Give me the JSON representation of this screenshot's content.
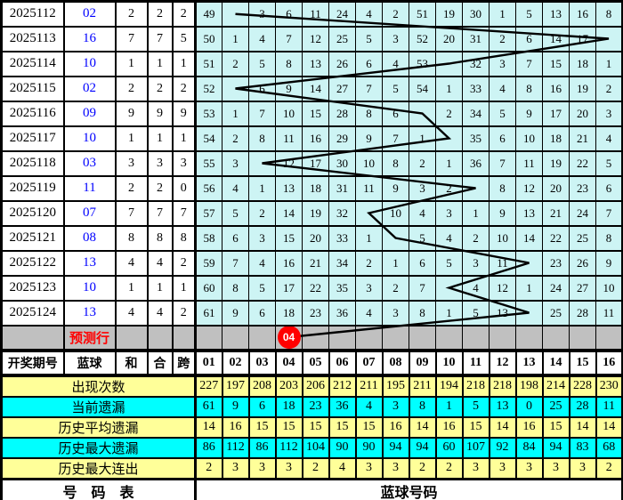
{
  "colors": {
    "grid_cell": "#CDF4F4",
    "stat_yellow": "#FFFF99",
    "stat_cyan": "#00FFFF",
    "prediction_gray": "#C0C0C0",
    "ball_red": "#FF0000",
    "blue_text": "#0000FF",
    "line_black": "#000000"
  },
  "chart_data": {
    "type": "table",
    "header": {
      "period": "开奖期号",
      "blue": "蓝球",
      "sum": "和",
      "combine": "合",
      "span": "跨",
      "ball_columns": [
        "01",
        "02",
        "03",
        "04",
        "05",
        "06",
        "07",
        "08",
        "09",
        "10",
        "11",
        "12",
        "13",
        "14",
        "15",
        "16"
      ]
    },
    "rows": [
      {
        "period": "2025112",
        "blue": "02",
        "sum": "2",
        "combine": "2",
        "span": "2",
        "circle_col": 2,
        "ball": "02",
        "cells": [
          "49",
          "",
          "3",
          "6",
          "11",
          "24",
          "4",
          "2",
          "51",
          "19",
          "30",
          "1",
          "5",
          "13",
          "16",
          "8"
        ]
      },
      {
        "period": "2025113",
        "blue": "16",
        "sum": "7",
        "combine": "7",
        "span": "5",
        "circle_col": 16,
        "ball": "16",
        "cells": [
          "50",
          "1",
          "4",
          "7",
          "12",
          "25",
          "5",
          "3",
          "52",
          "20",
          "31",
          "2",
          "6",
          "14",
          "17",
          ""
        ]
      },
      {
        "period": "2025114",
        "blue": "10",
        "sum": "1",
        "combine": "1",
        "span": "1",
        "circle_col": 10,
        "ball": "10",
        "cells": [
          "51",
          "2",
          "5",
          "8",
          "13",
          "26",
          "6",
          "4",
          "53",
          "",
          "32",
          "3",
          "7",
          "15",
          "18",
          "1"
        ]
      },
      {
        "period": "2025115",
        "blue": "02",
        "sum": "2",
        "combine": "2",
        "span": "2",
        "circle_col": 2,
        "ball": "02",
        "cells": [
          "52",
          "",
          "6",
          "9",
          "14",
          "27",
          "7",
          "5",
          "54",
          "1",
          "33",
          "4",
          "8",
          "16",
          "19",
          "2"
        ]
      },
      {
        "period": "2025116",
        "blue": "09",
        "sum": "9",
        "combine": "9",
        "span": "9",
        "circle_col": 9,
        "ball": "09",
        "cells": [
          "53",
          "1",
          "7",
          "10",
          "15",
          "28",
          "8",
          "6",
          "",
          "2",
          "34",
          "5",
          "9",
          "17",
          "20",
          "3"
        ]
      },
      {
        "period": "2025117",
        "blue": "10",
        "sum": "1",
        "combine": "1",
        "span": "1",
        "circle_col": 10,
        "ball": "10",
        "cells": [
          "54",
          "2",
          "8",
          "11",
          "16",
          "29",
          "9",
          "7",
          "1",
          "",
          "35",
          "6",
          "10",
          "18",
          "21",
          "4"
        ]
      },
      {
        "period": "2025118",
        "blue": "03",
        "sum": "3",
        "combine": "3",
        "span": "3",
        "circle_col": 3,
        "ball": "03",
        "cells": [
          "55",
          "3",
          "",
          "12",
          "17",
          "30",
          "10",
          "8",
          "2",
          "1",
          "36",
          "7",
          "11",
          "19",
          "22",
          "5"
        ]
      },
      {
        "period": "2025119",
        "blue": "11",
        "sum": "2",
        "combine": "2",
        "span": "0",
        "circle_col": 11,
        "ball": "11",
        "cells": [
          "56",
          "4",
          "1",
          "13",
          "18",
          "31",
          "11",
          "9",
          "3",
          "2",
          "",
          "8",
          "12",
          "20",
          "23",
          "6"
        ]
      },
      {
        "period": "2025120",
        "blue": "07",
        "sum": "7",
        "combine": "7",
        "span": "7",
        "circle_col": 7,
        "ball": "07",
        "cells": [
          "57",
          "5",
          "2",
          "14",
          "19",
          "32",
          "",
          "10",
          "4",
          "3",
          "1",
          "9",
          "13",
          "21",
          "24",
          "7"
        ]
      },
      {
        "period": "2025121",
        "blue": "08",
        "sum": "8",
        "combine": "8",
        "span": "8",
        "circle_col": 8,
        "ball": "08",
        "cells": [
          "58",
          "6",
          "3",
          "15",
          "20",
          "33",
          "1",
          "",
          "5",
          "4",
          "2",
          "10",
          "14",
          "22",
          "25",
          "8"
        ]
      },
      {
        "period": "2025122",
        "blue": "13",
        "sum": "4",
        "combine": "4",
        "span": "2",
        "circle_col": 13,
        "ball": "13",
        "cells": [
          "59",
          "7",
          "4",
          "16",
          "21",
          "34",
          "2",
          "1",
          "6",
          "5",
          "3",
          "11",
          "",
          "23",
          "26",
          "9"
        ]
      },
      {
        "period": "2025123",
        "blue": "10",
        "sum": "1",
        "combine": "1",
        "span": "1",
        "circle_col": 10,
        "ball": "10",
        "cells": [
          "60",
          "8",
          "5",
          "17",
          "22",
          "35",
          "3",
          "2",
          "7",
          "",
          "4",
          "12",
          "1",
          "24",
          "27",
          "10"
        ]
      },
      {
        "period": "2025124",
        "blue": "13",
        "sum": "4",
        "combine": "4",
        "span": "2",
        "circle_col": 13,
        "ball": "13",
        "cells": [
          "61",
          "9",
          "6",
          "18",
          "23",
          "36",
          "4",
          "3",
          "8",
          "1",
          "5",
          "13",
          "",
          "25",
          "28",
          "11"
        ]
      }
    ],
    "prediction_row": {
      "label": "预测行",
      "circle_col": 4,
      "ball": "04"
    },
    "stats": [
      {
        "label": "出现次数",
        "bg": "yellow",
        "values": [
          "227",
          "197",
          "208",
          "203",
          "206",
          "212",
          "211",
          "195",
          "211",
          "194",
          "218",
          "218",
          "198",
          "214",
          "228",
          "230"
        ]
      },
      {
        "label": "当前遗漏",
        "bg": "cyan",
        "values": [
          "61",
          "9",
          "6",
          "18",
          "23",
          "36",
          "4",
          "3",
          "8",
          "1",
          "5",
          "13",
          "0",
          "25",
          "28",
          "11"
        ]
      },
      {
        "label": "历史平均遗漏",
        "bg": "yellow",
        "values": [
          "14",
          "16",
          "15",
          "15",
          "15",
          "15",
          "15",
          "16",
          "14",
          "16",
          "15",
          "14",
          "16",
          "15",
          "14",
          "14"
        ]
      },
      {
        "label": "历史最大遗漏",
        "bg": "cyan",
        "values": [
          "86",
          "112",
          "86",
          "112",
          "104",
          "90",
          "90",
          "94",
          "94",
          "60",
          "107",
          "92",
          "84",
          "94",
          "83",
          "68"
        ]
      },
      {
        "label": "历史最大连出",
        "bg": "yellow",
        "values": [
          "2",
          "3",
          "3",
          "3",
          "2",
          "4",
          "3",
          "3",
          "2",
          "2",
          "3",
          "3",
          "3",
          "3",
          "3",
          "2"
        ]
      }
    ],
    "footer": {
      "left": "号　码　表",
      "right": "蓝球号码"
    }
  }
}
